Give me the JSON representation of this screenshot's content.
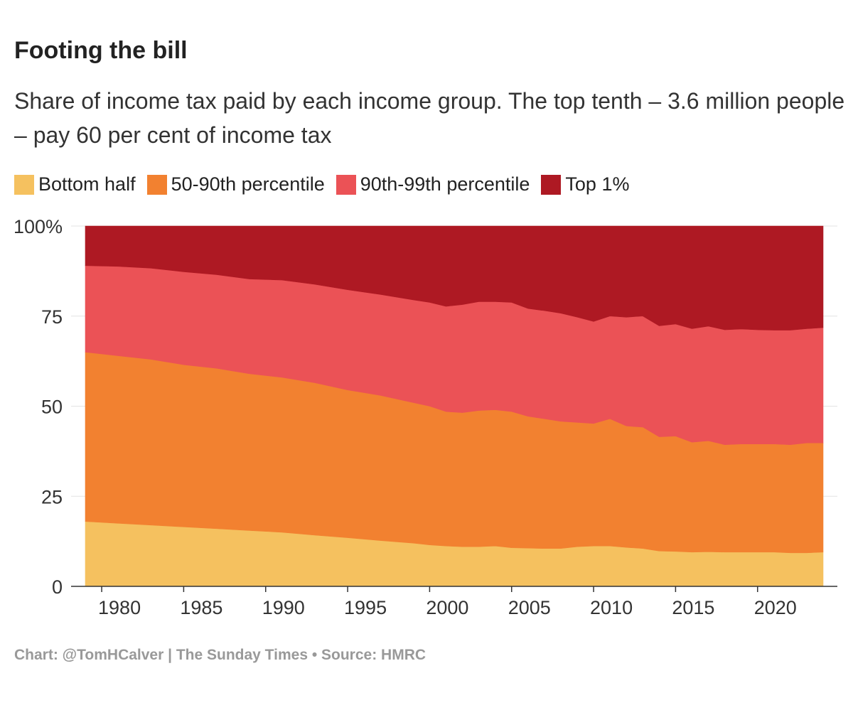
{
  "header": {
    "title": "Footing the bill",
    "subtitle": "Share of income tax paid by each income group. The top tenth – 3.6 million people – pay 60 per cent of income tax"
  },
  "footer": {
    "credit": "Chart: @TomHCalver | The Sunday Times • Source: HMRC"
  },
  "chart_data": {
    "type": "area",
    "stacked": true,
    "x": [
      1979,
      1981,
      1983,
      1985,
      1987,
      1989,
      1991,
      1993,
      1995,
      1997,
      1999,
      2000,
      2001,
      2002,
      2003,
      2004,
      2005,
      2006,
      2007,
      2008,
      2009,
      2010,
      2011,
      2012,
      2013,
      2014,
      2015,
      2016,
      2017,
      2018,
      2019,
      2020,
      2021,
      2022,
      2023,
      2024
    ],
    "series": [
      {
        "name": "Bottom half",
        "color": "#F5C15F",
        "values": [
          18,
          17.5,
          17,
          16.5,
          16,
          15.5,
          15,
          14.2,
          13.5,
          12.7,
          12,
          11.5,
          11.2,
          11,
          11,
          11.2,
          10.7,
          10.6,
          10.5,
          10.5,
          11,
          11.2,
          11.2,
          10.8,
          10.5,
          9.8,
          9.7,
          9.5,
          9.6,
          9.5,
          9.5,
          9.5,
          9.5,
          9.3,
          9.3,
          9.5
        ]
      },
      {
        "name": "50-90th percentile",
        "color": "#F28130",
        "values": [
          47,
          46.5,
          46,
          45,
          44.5,
          43.5,
          43,
          42.3,
          41,
          40.3,
          39,
          38.5,
          37.3,
          37.2,
          37.8,
          37.8,
          37.8,
          36.6,
          36,
          35.3,
          34.5,
          34,
          35.3,
          33.7,
          33.7,
          31.7,
          32,
          30.5,
          30.8,
          29.8,
          30,
          30,
          30,
          30,
          30.5,
          30.3
        ]
      },
      {
        "name": "90th-99th percentile",
        "color": "#EB5256",
        "values": [
          24,
          24.8,
          25.3,
          25.8,
          26,
          26.3,
          27,
          27.3,
          27.8,
          28,
          28.5,
          28.8,
          29.2,
          30,
          30.2,
          30,
          30.3,
          29.9,
          30,
          30,
          29.2,
          28.3,
          28.5,
          30.2,
          30.8,
          30.8,
          31.1,
          31.5,
          31.8,
          31.9,
          31.9,
          31.7,
          31.6,
          31.8,
          31.7,
          32
        ]
      },
      {
        "name": "Top 1%",
        "color": "#AE1923",
        "values": [
          11,
          11.2,
          11.7,
          12.7,
          13.5,
          14.7,
          15,
          16.2,
          17.7,
          19,
          20.5,
          21.2,
          22.3,
          21.8,
          21,
          21,
          21.2,
          22.9,
          23.5,
          24.2,
          25.3,
          26.5,
          25,
          25.3,
          25,
          27.7,
          27.2,
          28.5,
          27.8,
          28.8,
          28.6,
          28.8,
          28.9,
          28.9,
          28.5,
          28.2
        ]
      }
    ],
    "x_ticks": [
      "1980",
      "1985",
      "1990",
      "1995",
      "2000",
      "2005",
      "2010",
      "2015",
      "2020"
    ],
    "x_tick_values": [
      1980,
      1985,
      1990,
      1995,
      2000,
      2005,
      2010,
      2015,
      2020
    ],
    "y_ticks": [
      "0",
      "25",
      "50",
      "75",
      "100%"
    ],
    "y_tick_values": [
      0,
      25,
      50,
      75,
      100
    ],
    "xlim": [
      1979,
      2024
    ],
    "ylim": [
      0,
      100
    ],
    "xlabel": "",
    "ylabel": ""
  }
}
